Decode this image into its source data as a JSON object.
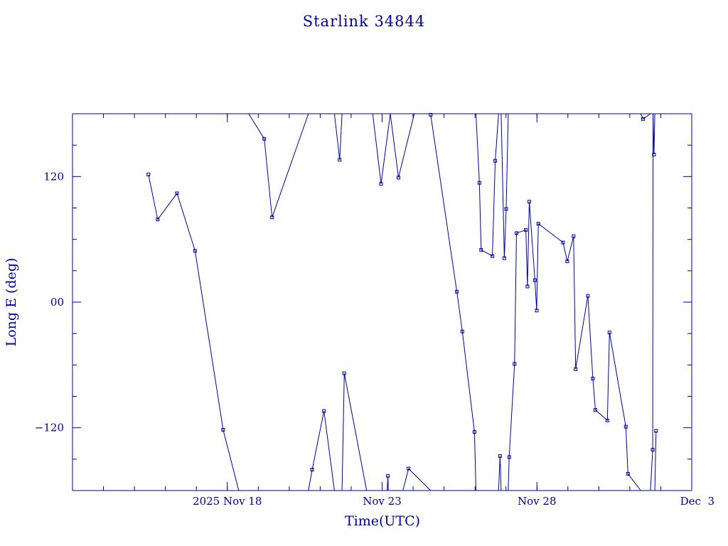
{
  "chart_data": {
    "type": "line",
    "title": "Starlink 34844",
    "xlabel": "Time(UTC)",
    "ylabel": "Long E (deg)",
    "xlim": [
      "2025-11-13",
      "2025-12-03"
    ],
    "ylim": [
      -180,
      180
    ],
    "x_ticks": [
      {
        "value": "2025-11-18",
        "label": "2025 Nov 18"
      },
      {
        "value": "2025-11-23",
        "label": "Nov 23"
      },
      {
        "value": "2025-11-28",
        "label": "Nov 28"
      },
      {
        "value": "2025-12-03",
        "label": "Dec  3"
      }
    ],
    "y_ticks": [
      {
        "value": 120,
        "label": "120"
      },
      {
        "value": 0,
        "label": "00"
      },
      {
        "value": -120,
        "label": "−120"
      }
    ],
    "grid": false,
    "color": "#0000a0",
    "series": [
      {
        "points": [
          [
            "2025-11-15T10:50",
            122
          ],
          [
            "2025-11-15T18:00",
            79
          ],
          [
            "2025-11-16T09:00",
            104
          ],
          [
            "2025-11-16T23:00",
            49
          ],
          [
            "2025-11-17T20:45",
            -122
          ],
          [
            "2025-11-18T08:50",
            -180
          ]
        ]
      },
      {
        "points": [
          [
            "2025-11-18T16:35",
            180
          ],
          [
            "2025-11-19T04:40",
            156
          ],
          [
            "2025-11-19T10:40",
            81
          ],
          [
            "2025-11-20T14:50",
            180
          ]
        ]
      },
      {
        "points": [
          [
            "2025-11-20T14:50",
            -180
          ],
          [
            "2025-11-20T17:45",
            -160
          ],
          [
            "2025-11-21T02:55",
            -104
          ],
          [
            "2025-11-21T11:00",
            -180
          ]
        ]
      },
      {
        "points": [
          [
            "2025-11-21T11:00",
            180
          ],
          [
            "2025-11-21T15:05",
            136
          ],
          [
            "2025-11-21T16:55",
            180
          ]
        ]
      },
      {
        "points": [
          [
            "2025-11-21T16:55",
            -180
          ],
          [
            "2025-11-21T18:40",
            -68
          ],
          [
            "2025-11-22T12:00",
            -180
          ]
        ]
      },
      {
        "points": [
          [
            "2025-11-22T16:45",
            180
          ],
          [
            "2025-11-22T23:10",
            113
          ],
          [
            "2025-11-23T06:20",
            180
          ]
        ]
      },
      {
        "points": [
          [
            "2025-11-23T03:55",
            -180
          ],
          [
            "2025-11-23T04:30",
            -166
          ],
          [
            "2025-11-23T04:45",
            -180
          ]
        ]
      },
      {
        "points": [
          [
            "2025-11-23T06:20",
            180
          ],
          [
            "2025-11-23T12:40",
            119
          ],
          [
            "2025-11-24T00:55",
            180
          ]
        ]
      },
      {
        "points": [
          [
            "2025-11-23T16:05",
            -180
          ],
          [
            "2025-11-23T20:30",
            -159
          ],
          [
            "2025-11-24T13:40",
            -180
          ]
        ]
      },
      {
        "points": [
          [
            "2025-11-24T13:40",
            179
          ],
          [
            "2025-11-25T09:55",
            10
          ],
          [
            "2025-11-25T14:10",
            -28
          ],
          [
            "2025-11-25T23:35",
            -124
          ],
          [
            "2025-11-26T00:45",
            -180
          ]
        ]
      },
      {
        "points": [
          [
            "2025-11-26T00:45",
            180
          ],
          [
            "2025-11-26T03:25",
            114
          ],
          [
            "2025-11-26T04:45",
            50
          ],
          [
            "2025-11-26T13:30",
            44
          ],
          [
            "2025-11-26T15:40",
            135
          ],
          [
            "2025-11-26T18:15",
            180
          ]
        ]
      },
      {
        "points": [
          [
            "2025-11-26T18:15",
            -180
          ],
          [
            "2025-11-26T19:25",
            -147
          ],
          [
            "2025-11-26T20:15",
            -180
          ]
        ]
      },
      {
        "points": [
          [
            "2025-11-26T20:15",
            180
          ],
          [
            "2025-11-26T22:45",
            42
          ],
          [
            "2025-11-27T00:10",
            89
          ],
          [
            "2025-11-27T01:45",
            180
          ]
        ]
      },
      {
        "points": [
          [
            "2025-11-27T01:45",
            -180
          ],
          [
            "2025-11-27T02:30",
            -148
          ],
          [
            "2025-11-27T06:40",
            -59
          ],
          [
            "2025-11-27T08:10",
            66
          ],
          [
            "2025-11-27T15:25",
            69
          ],
          [
            "2025-11-27T16:40",
            15
          ],
          [
            "2025-11-27T18:05",
            96
          ],
          [
            "2025-11-27T22:25",
            21
          ],
          [
            "2025-11-27T23:50",
            -8
          ],
          [
            "2025-11-28T01:05",
            75
          ],
          [
            "2025-11-28T20:15",
            57
          ],
          [
            "2025-11-28T23:30",
            39
          ],
          [
            "2025-11-29T04:25",
            63
          ],
          [
            "2025-11-29T06:00",
            -64
          ],
          [
            "2025-11-29T15:30",
            6
          ],
          [
            "2025-11-29T19:20",
            -73
          ],
          [
            "2025-11-29T21:20",
            -103
          ],
          [
            "2025-11-30T06:35",
            -113
          ],
          [
            "2025-11-30T08:15",
            -29
          ],
          [
            "2025-11-30T20:55",
            -119
          ],
          [
            "2025-11-30T22:35",
            -164
          ],
          [
            "2025-12-01T08:30",
            -180
          ]
        ]
      },
      {
        "points": [
          [
            "2025-12-01T08:30",
            180
          ],
          [
            "2025-12-01T10:15",
            175
          ],
          [
            "2025-12-01T16:00",
            180
          ]
        ]
      },
      {
        "points": [
          [
            "2025-12-01T16:00",
            -180
          ],
          [
            "2025-12-01T17:45",
            -141
          ],
          [
            "2025-12-01T18:00",
            180
          ]
        ]
      },
      {
        "points": [
          [
            "2025-12-01T18:00",
            180
          ],
          [
            "2025-12-01T18:45",
            141
          ],
          [
            "2025-12-01T19:25",
            180
          ]
        ]
      },
      {
        "points": [
          [
            "2025-12-01T19:25",
            -180
          ],
          [
            "2025-12-01T20:20",
            -123
          ]
        ]
      }
    ]
  }
}
